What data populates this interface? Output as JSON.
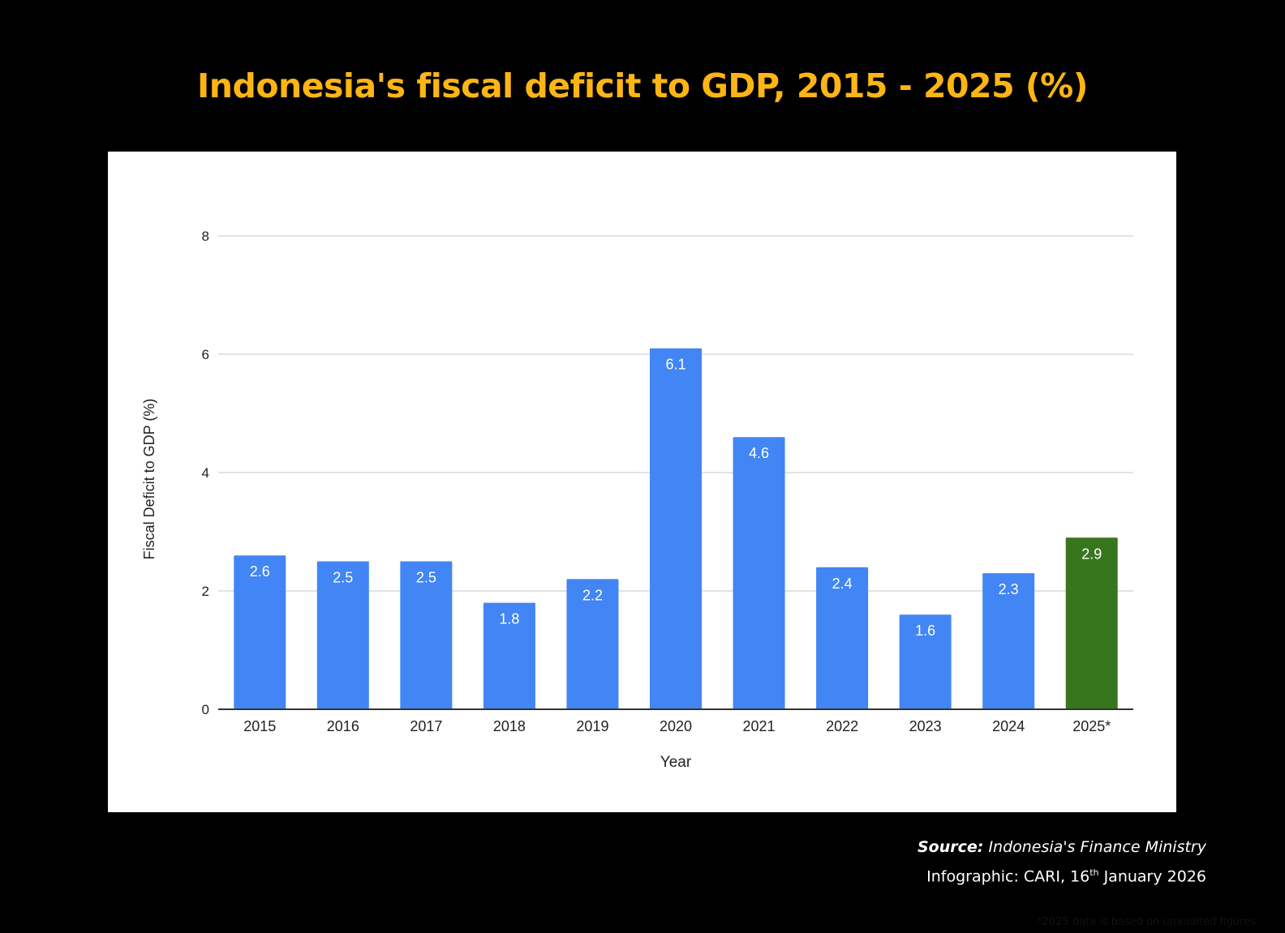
{
  "page": {
    "title": "Indonesia's fiscal deficit to GDP, 2015 - 2025 (%)",
    "footnote": "*2025 data is based on unaudited figures",
    "source_label": "Source:",
    "source_value": "Indonesia's Finance Ministry",
    "credit_prefix": "Infographic: CARI, 16",
    "credit_sup": "th",
    "credit_suffix": " January 2026"
  },
  "colors": {
    "background": "#000000",
    "title": "#FDB515",
    "panel": "#FFFFFF",
    "bar": "#4285F4",
    "bar_highlight": "#38761D",
    "grid": "#D9D9D9",
    "axis_text": "#222222"
  },
  "chart_data": {
    "type": "bar",
    "title": "",
    "xlabel": "Year",
    "ylabel": "Fiscal Deficit to GDP (%)",
    "ylim": [
      0,
      8
    ],
    "yticks": [
      0,
      2,
      4,
      6,
      8
    ],
    "grid": true,
    "categories": [
      "2015",
      "2016",
      "2017",
      "2018",
      "2019",
      "2020",
      "2021",
      "2022",
      "2023",
      "2024",
      "2025*"
    ],
    "values": [
      2.6,
      2.5,
      2.5,
      1.8,
      2.2,
      6.1,
      4.6,
      2.4,
      1.6,
      2.3,
      2.9
    ],
    "data_labels": [
      "2.6",
      "2.5",
      "2.5",
      "1.8",
      "2.2",
      "6.1",
      "4.6",
      "2.4",
      "1.6",
      "2.3",
      "2.9"
    ],
    "highlight_category": "2025*"
  }
}
